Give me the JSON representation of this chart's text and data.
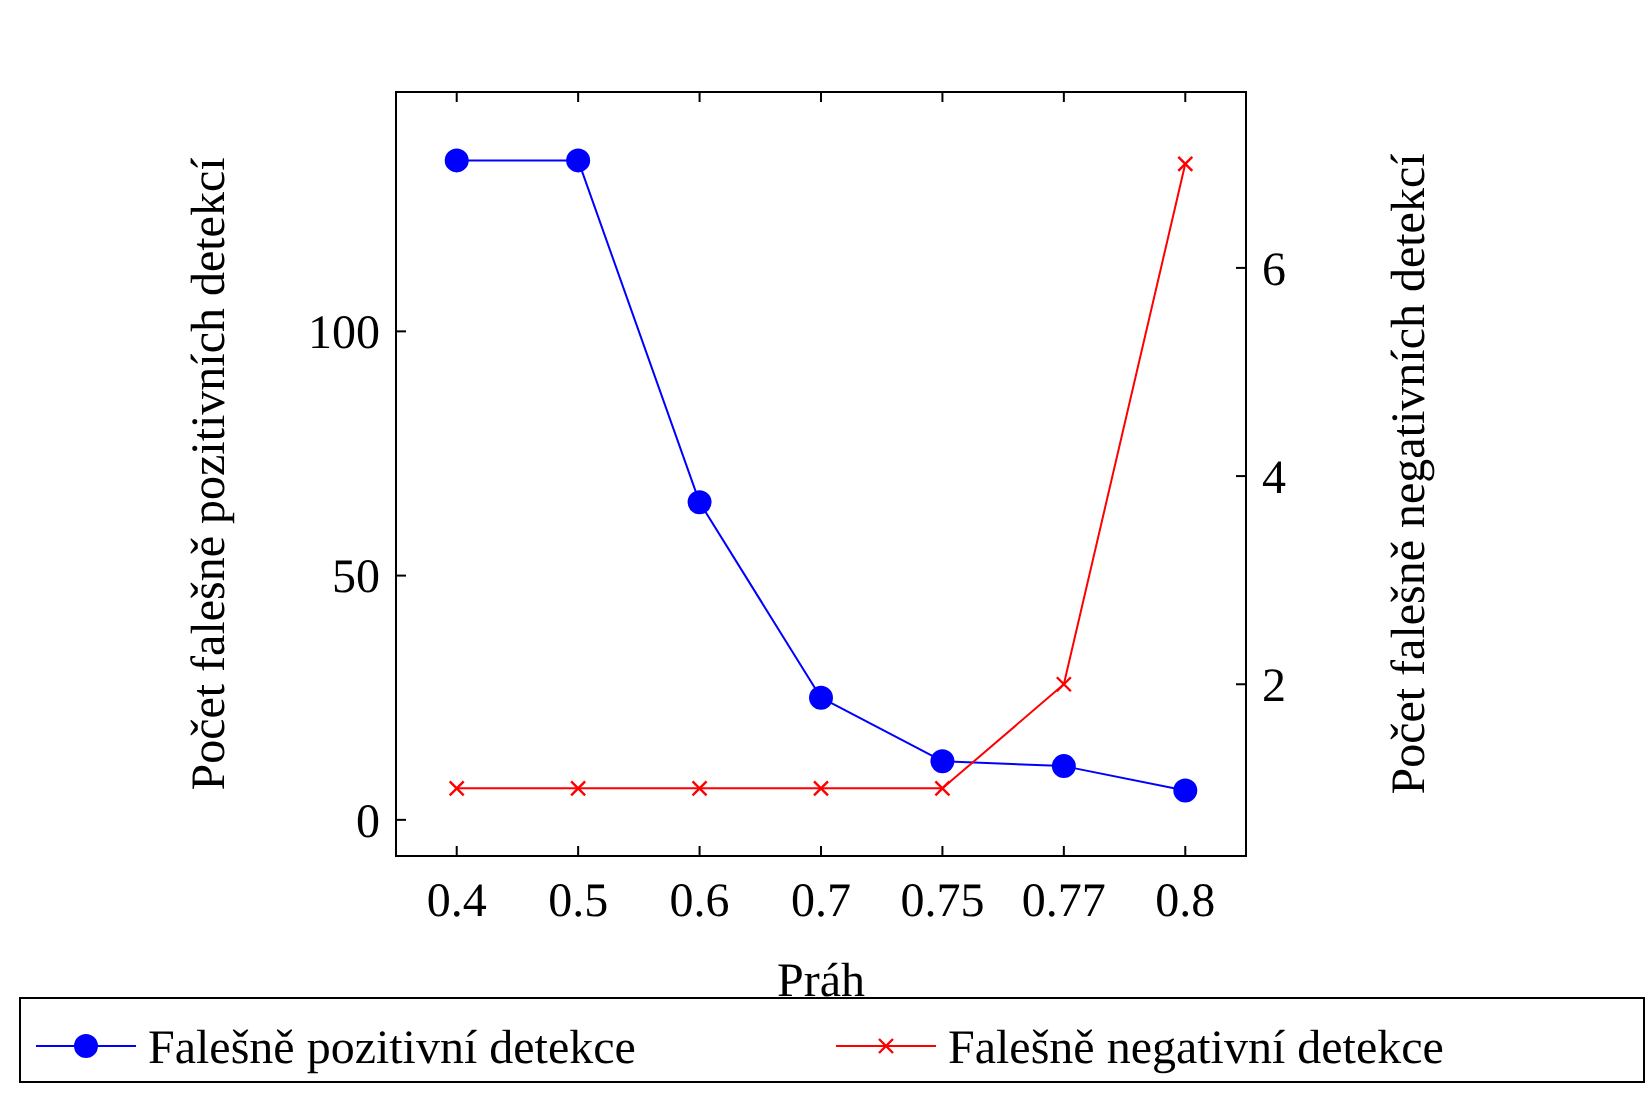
{
  "chart_data": {
    "type": "line",
    "xlabel": "Práh",
    "ylabel": "Počet falešně pozitivních detekcí",
    "y2label": "Počet falešně negativních detekcí",
    "categories": [
      "0.4",
      "0.5",
      "0.6",
      "0.7",
      "0.75",
      "0.77",
      "0.8"
    ],
    "series": [
      {
        "name": "Falešně pozitivní detekce",
        "color": "#0000ff",
        "marker": "circle",
        "values": [
          135,
          135,
          65,
          25,
          12,
          11,
          6
        ]
      },
      {
        "name": "Falešně negativní detekce",
        "color": "#ff0000",
        "marker": "cross",
        "axis": "y2",
        "values": [
          1,
          1,
          1,
          1,
          1,
          2,
          7
        ]
      }
    ],
    "ylim": [
      -7.4,
      149
    ],
    "yticks": [
      0,
      50,
      100
    ],
    "y2lim": [
      0.35,
      7.69
    ],
    "y2ticks": [
      2,
      4,
      6
    ],
    "grid": false,
    "legend": "bottom"
  }
}
